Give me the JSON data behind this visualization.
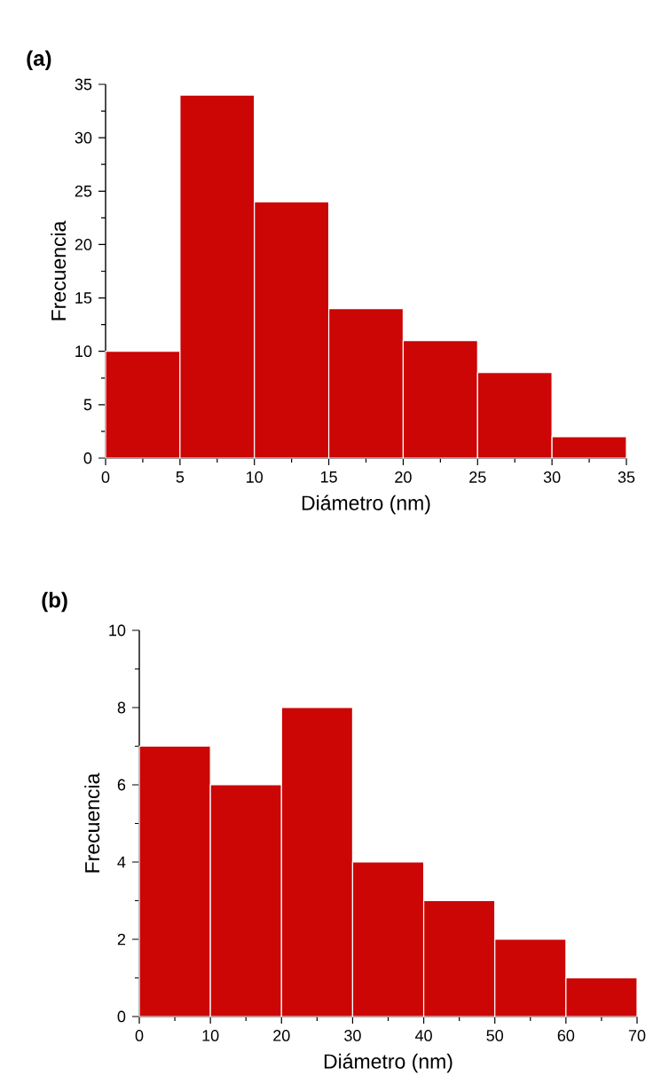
{
  "chart_data": [
    {
      "type": "histogram",
      "title": "(a)",
      "xlabel": "Diámetro (nm)",
      "ylabel": "Frecuencia",
      "bins": [
        0,
        5,
        10,
        15,
        20,
        25,
        30,
        35
      ],
      "values": [
        10,
        34,
        24,
        14,
        11,
        8,
        2
      ],
      "color": "#cc0505",
      "xlim": [
        0,
        35
      ],
      "ylim": [
        0,
        35
      ],
      "xticks": [
        0,
        5,
        10,
        15,
        20,
        25,
        30,
        35
      ],
      "yticks": [
        0,
        5,
        10,
        15,
        20,
        25,
        30,
        35
      ]
    },
    {
      "type": "histogram",
      "title": "(b)",
      "xlabel": "Diámetro (nm)",
      "ylabel": "Frecuencia",
      "bins": [
        0,
        10,
        20,
        30,
        40,
        50,
        60,
        70
      ],
      "values": [
        7,
        6,
        8,
        4,
        3,
        2,
        1
      ],
      "color": "#cc0505",
      "xlim": [
        0,
        70
      ],
      "ylim": [
        0,
        10
      ],
      "xticks": [
        0,
        10,
        20,
        30,
        40,
        50,
        60,
        70
      ],
      "yticks": [
        0,
        2,
        4,
        6,
        8,
        10
      ]
    }
  ]
}
